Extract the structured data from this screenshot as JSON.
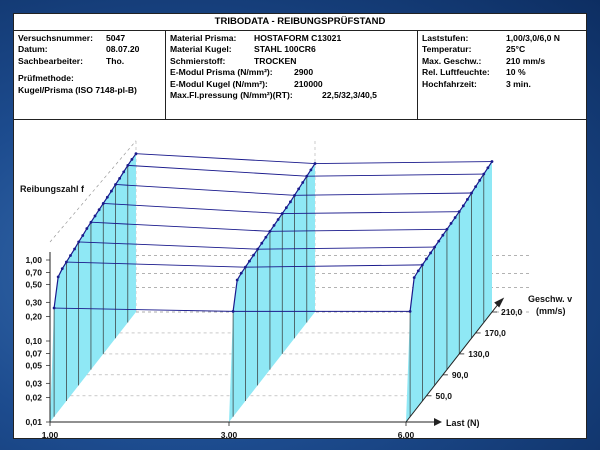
{
  "header": {
    "title": "TRIBODATA - REIBUNGSPRÜFSTAND"
  },
  "left_box": {
    "versuch_label": "Versuchsnummer:",
    "versuch_value": "5047",
    "datum_label": "Datum:",
    "datum_value": "08.07.20",
    "sach_label": "Sachbearbeiter:",
    "sach_value": "Tho.",
    "methode_label": "Prüfmethode:",
    "methode_value": "Kugel/Prisma (ISO 7148-pl-B)"
  },
  "mid_box": {
    "prisma_label": "Material Prisma:",
    "prisma_value": "HOSTAFORM C13021",
    "kugel_label": "Material Kugel:",
    "kugel_value": "STAHL 100CR6",
    "schmier_label": "Schmierstoff:",
    "schmier_value": "TROCKEN",
    "emod_prisma_label": "E-Modul Prisma (N/mm²):",
    "emod_prisma_value": "2900",
    "emod_kugel_label": "E-Modul Kugel (N/mm²):",
    "emod_kugel_value": "210000",
    "flp_label": "Max.Fl.pressung (N/mm²)(RT):",
    "flp_value": "22,5/32,3/40,5"
  },
  "right_box": {
    "last_label": "Laststufen:",
    "last_value": "1,00/3,0/6,0 N",
    "temp_label": "Temperatur:",
    "temp_value": "25°C",
    "geschw_label": "Max. Geschw.:",
    "geschw_value": "210 mm/s",
    "feuchte_label": "Rel. Luftfeuchte:",
    "feuchte_value": "10 %",
    "hoch_label": "Hochfahrzeit:",
    "hoch_value": "3 min."
  },
  "chart_data": {
    "type": "area",
    "xlabel": "Last (N)",
    "ylabel": "Reibungszahl f",
    "zlabel_line1": "Geschw. v",
    "zlabel_line2": "(mm/s)",
    "x_ticks": [
      "1,00",
      "3,00",
      "6,00"
    ],
    "y_ticks": [
      "0,01",
      "0,02",
      "0,03",
      "0,05",
      "0,07",
      "0,10",
      "0,20",
      "0,30",
      "0,50",
      "0,70",
      "1,00"
    ],
    "y_scale": "log",
    "z_ticks": [
      "50,0",
      "90,0",
      "130,0",
      "170,0",
      "210,0"
    ],
    "fill_color": "#8fe8f5",
    "line_color": "#1a1a8c",
    "grid": true,
    "series": [
      {
        "load": "1,00",
        "v": [
          10,
          20,
          30,
          40,
          50,
          60,
          70,
          80,
          90,
          100,
          110,
          120,
          130,
          140,
          150,
          160,
          170,
          180,
          190,
          200,
          210
        ],
        "f": [
          0.22,
          0.46,
          0.5,
          0.52,
          0.54,
          0.56,
          0.59,
          0.61,
          0.64,
          0.66,
          0.68,
          0.7,
          0.72,
          0.74,
          0.76,
          0.79,
          0.81,
          0.84,
          0.87,
          0.89,
          0.9
        ]
      },
      {
        "load": "3,00",
        "v": [
          10,
          20,
          30,
          40,
          50,
          60,
          70,
          80,
          90,
          100,
          110,
          120,
          130,
          140,
          150,
          160,
          170,
          180,
          190,
          200,
          210
        ],
        "f": [
          0.2,
          0.42,
          0.44,
          0.45,
          0.46,
          0.47,
          0.48,
          0.49,
          0.5,
          0.51,
          0.52,
          0.53,
          0.54,
          0.55,
          0.56,
          0.58,
          0.6,
          0.62,
          0.64,
          0.66,
          0.68
        ]
      },
      {
        "load": "6,00",
        "v": [
          10,
          20,
          30,
          40,
          50,
          60,
          70,
          80,
          90,
          100,
          110,
          120,
          130,
          140,
          150,
          160,
          170,
          180,
          190,
          200,
          210
        ],
        "f": [
          0.2,
          0.45,
          0.47,
          0.48,
          0.49,
          0.5,
          0.51,
          0.52,
          0.53,
          0.54,
          0.55,
          0.56,
          0.57,
          0.58,
          0.6,
          0.62,
          0.64,
          0.66,
          0.68,
          0.7,
          0.72
        ]
      }
    ]
  }
}
